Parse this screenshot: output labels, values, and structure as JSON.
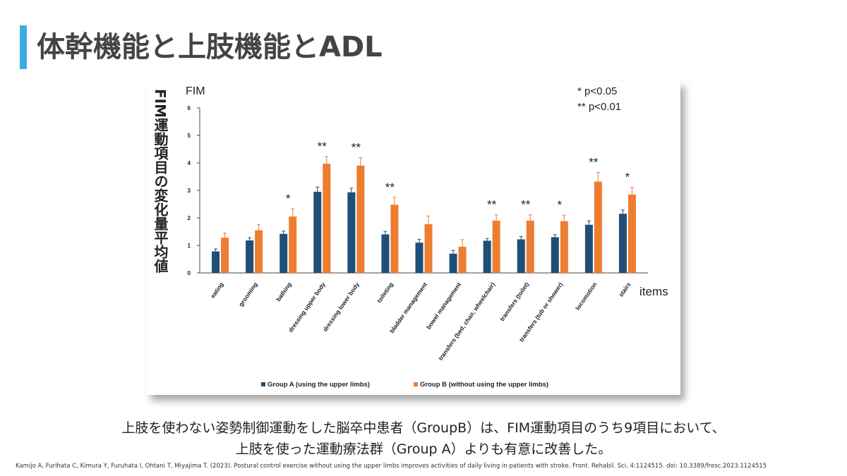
{
  "slide": {
    "title": "体幹機能と上肢機能とADL",
    "caption_line1": "上肢を使わない姿勢制御運動をした脳卒中患者（GroupB）は、FIM運動項目のうち9項目において、",
    "caption_line2": "上肢を使った運動療法群（Group A）よりも有意に改善した。",
    "citation": "Kamijo A, Furihata C, Kimura Y, Furuhata I, Ohtani T, Miyajima T. (2023). Postural control exercise without using the upper limbs improves activities of daily living in patients with stroke. Front. Rehabil. Sci. 4:1124515. doi: 10.3389/fresc.2023.1124515"
  },
  "chart_data": {
    "type": "bar",
    "vertical_label": "FIM運動項目の変化量平均値",
    "ylabel": "FIM",
    "xlabel": "items",
    "ylim": [
      0,
      6
    ],
    "yticks": [
      "0",
      "1",
      "2",
      "3",
      "4",
      "5",
      "6"
    ],
    "significance_legend": [
      "* p<0.05",
      "** p<0.01"
    ],
    "legend_position": "bottom",
    "categories": [
      "eating",
      "grooming",
      "bathing",
      "dressing upper body",
      "dressing lower body",
      "toileting",
      "bladder management",
      "bowel management",
      "transfers (bed, chair, wheelchair)",
      "transfers (toilet)",
      "transfers (tub or shower)",
      "locomotion",
      "stairs"
    ],
    "series": [
      {
        "name": "Group A (using the upper limbs)",
        "color": "#1f4e79",
        "values": [
          0.78,
          1.18,
          1.42,
          2.95,
          2.93,
          1.4,
          1.1,
          0.7,
          1.17,
          1.22,
          1.3,
          1.75,
          2.15
        ],
        "errors": [
          0.09,
          0.1,
          0.1,
          0.17,
          0.15,
          0.11,
          0.12,
          0.12,
          0.08,
          0.1,
          0.09,
          0.14,
          0.14
        ]
      },
      {
        "name": "Group B (without using the upper limbs)",
        "color": "#ed7d31",
        "values": [
          1.28,
          1.55,
          2.05,
          3.97,
          3.9,
          2.48,
          1.77,
          0.95,
          1.9,
          1.9,
          1.88,
          3.32,
          2.85
        ],
        "errors": [
          0.17,
          0.2,
          0.28,
          0.26,
          0.29,
          0.27,
          0.3,
          0.26,
          0.21,
          0.21,
          0.22,
          0.33,
          0.26
        ]
      }
    ],
    "significance": [
      "",
      "",
      "*",
      "**",
      "**",
      "**",
      "",
      "",
      "**",
      "**",
      "*",
      "**",
      "*"
    ]
  }
}
